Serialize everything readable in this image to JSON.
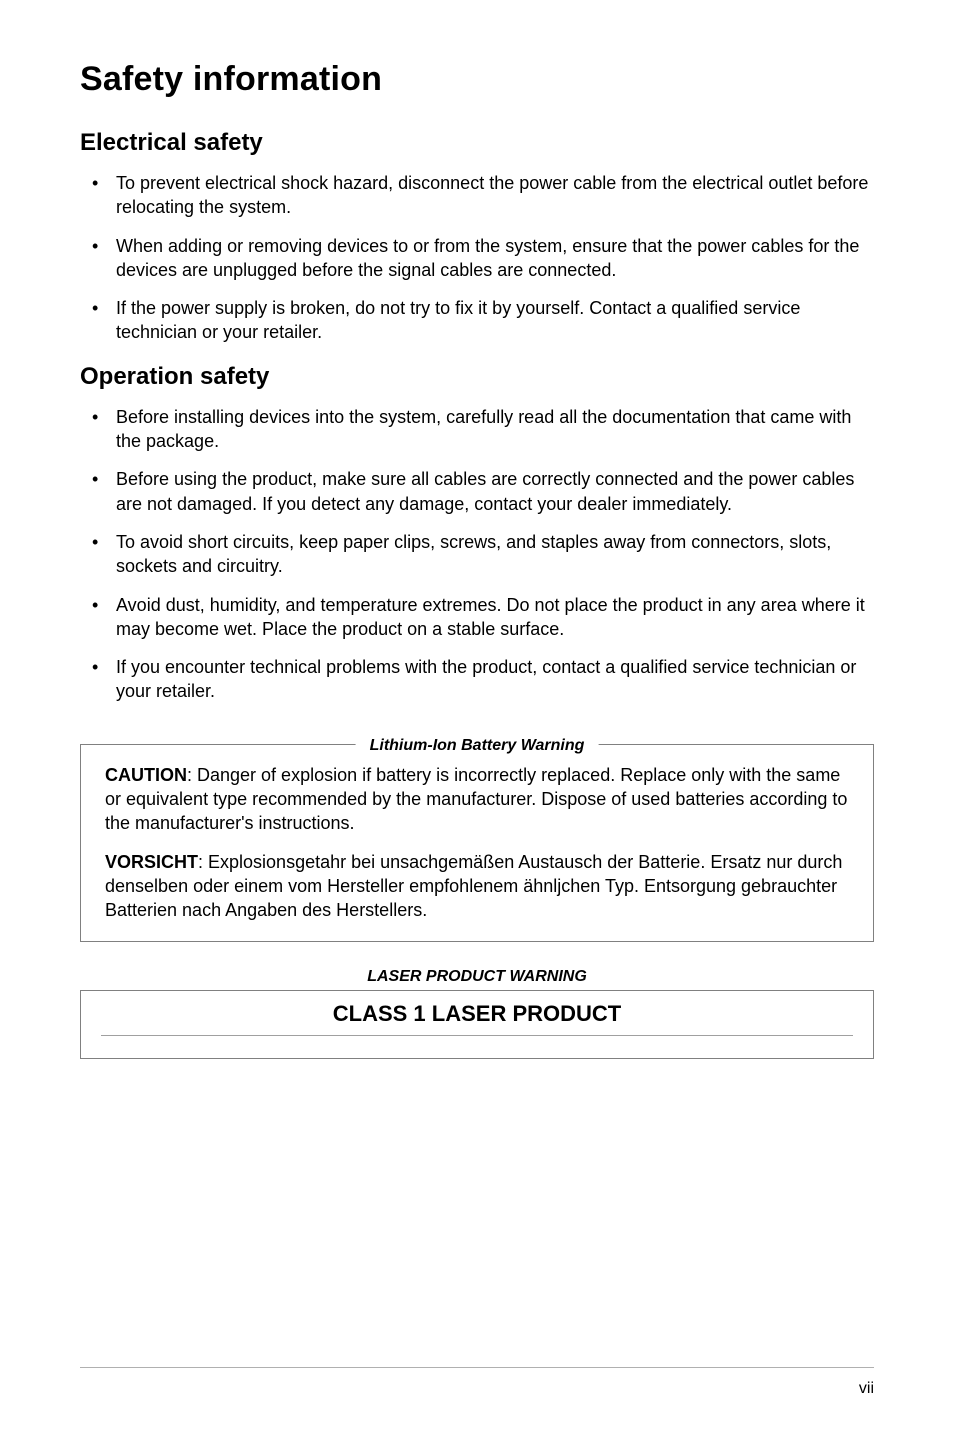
{
  "page": {
    "title": "Safety information",
    "footer_page": "vii"
  },
  "electrical": {
    "heading": "Electrical safety",
    "items": [
      "To prevent electrical shock hazard, disconnect the power cable from the electrical outlet before relocating the system.",
      "When adding or removing devices to or from the system, ensure that the power cables for the devices are unplugged before the signal cables are connected.",
      "If the power supply is broken, do not try to fix it by yourself. Contact a qualified service technician or your retailer."
    ]
  },
  "operation": {
    "heading": "Operation safety",
    "items": [
      "Before installing devices into the system, carefully read all the documentation that came with the package.",
      "Before using the product, make sure all cables are correctly connected and the power cables are not damaged. If you detect any damage, contact your dealer immediately.",
      "To avoid short circuits, keep paper clips, screws, and staples away from connectors, slots, sockets and circuitry.",
      "Avoid dust, humidity, and temperature extremes. Do not place the product in any area where it may become wet. Place the product on a stable surface.",
      "If you encounter technical problems with the product, contact a qualified service technician or your retailer."
    ]
  },
  "battery_warning": {
    "title": "Lithium-Ion Battery Warning",
    "caution_label": "CAUTION",
    "caution_text": ": Danger of explosion if battery is incorrectly replaced. Replace only with the same or equivalent type recommended by the manufacturer. Dispose of used batteries according to the manufacturer's instructions.",
    "vorsicht_label": "VORSICHT",
    "vorsicht_text": ": Explosionsgetahr bei unsachgemäßen Austausch der Batterie. Ersatz nur durch denselben oder einem vom Hersteller empfohlenem ähnljchen Typ. Entsorgung gebrauchter Batterien nach Angaben des Herstellers."
  },
  "laser_warning": {
    "title": "LASER PRODUCT WARNING",
    "text": "CLASS 1 LASER PRODUCT"
  },
  "style": {
    "background_color": "#ffffff",
    "text_color": "#000000",
    "border_color": "#808080",
    "divider_color": "#b0b0b0",
    "main_title_fontsize": 34,
    "section_title_fontsize": 24,
    "body_fontsize": 18,
    "box_title_fontsize": 16,
    "laser_text_fontsize": 22
  }
}
